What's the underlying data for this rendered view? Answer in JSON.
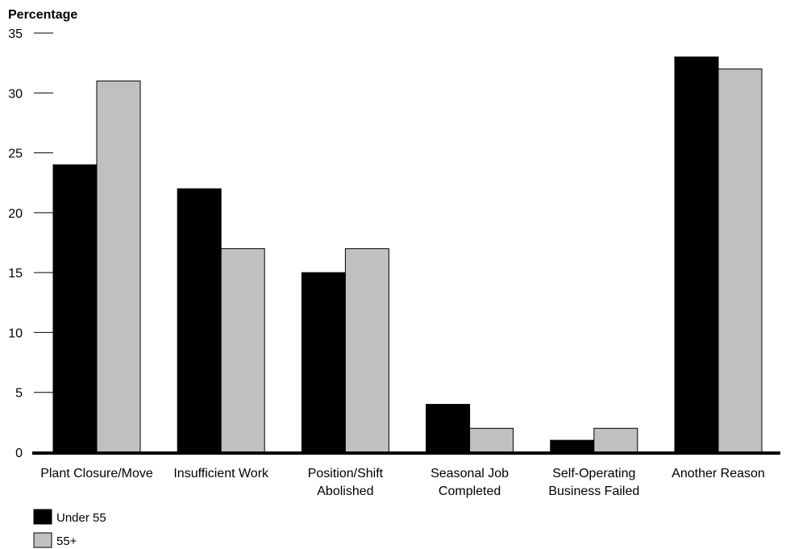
{
  "chart_data": {
    "type": "bar",
    "title": "",
    "xlabel": "",
    "ylabel": "Percentage",
    "ylim": [
      0,
      35
    ],
    "yticks": [
      "0",
      "5",
      "10",
      "15",
      "20",
      "25",
      "30",
      "35"
    ],
    "grid": false,
    "legend_position": "bottom-left",
    "categories": [
      [
        "Plant Closure/Move"
      ],
      [
        "Insufficient Work"
      ],
      [
        "Position/Shift",
        "Abolished"
      ],
      [
        "Seasonal Job",
        "Completed"
      ],
      [
        "Self-Operating",
        "Business Failed"
      ],
      [
        "Another Reason"
      ]
    ],
    "series": [
      {
        "name": "Under 55",
        "color": "#000000",
        "values": [
          24,
          22,
          15,
          4,
          1,
          33
        ]
      },
      {
        "name": "55+",
        "color": "#c0c0c0",
        "values": [
          31,
          17,
          17,
          2,
          2,
          32
        ]
      }
    ]
  }
}
